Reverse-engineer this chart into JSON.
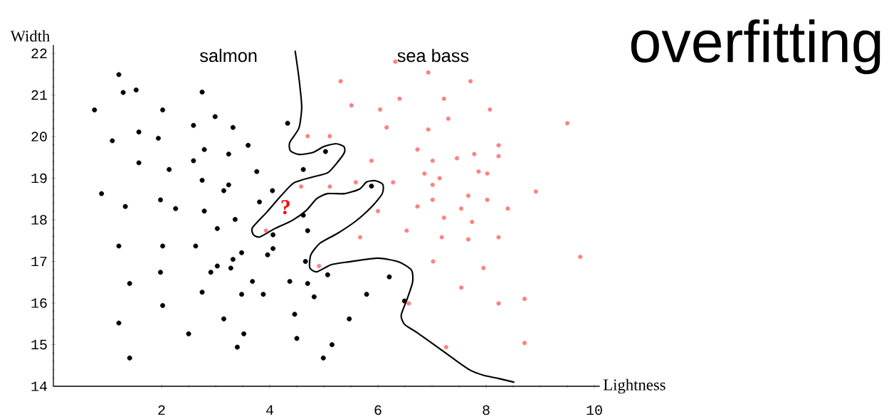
{
  "chart_data": {
    "type": "scatter",
    "title": "overfitting",
    "xlabel": "Lightness",
    "ylabel": "Width",
    "xlim": [
      0,
      10.1
    ],
    "ylim": [
      14,
      22.2
    ],
    "xticks": [
      2,
      4,
      6,
      8,
      10
    ],
    "yticks": [
      14,
      15,
      16,
      17,
      18,
      19,
      20,
      21,
      22
    ],
    "grid": false,
    "legend": false,
    "marker": "circle",
    "annotations": [
      "?"
    ],
    "series": [
      {
        "name": "salmon",
        "color": "#000000",
        "x": [
          1.21,
          1.29,
          1.53,
          2.75,
          0.76,
          2.02,
          2.99,
          2.59,
          3.32,
          4.33,
          1.58,
          1.09,
          1.94,
          2.79,
          3.24,
          3.6,
          2.59,
          1.58,
          2.14,
          3.76,
          2.75,
          3.24,
          3.15,
          4.05,
          0.89,
          1.98,
          3.81,
          1.33,
          2.26,
          2.79,
          3.36,
          3.03,
          4.06,
          1.21,
          2.02,
          2.63,
          4.06,
          3.48,
          3.96,
          3.32,
          3.03,
          3.28,
          2.91,
          1.98,
          1.41,
          3.68,
          4.37,
          2.75,
          3.48,
          3.88,
          2.02,
          3.15,
          4.46,
          1.21,
          2.5,
          3.52,
          4.5,
          3.4,
          1.41,
          5.03,
          4.62,
          5.88,
          4.62,
          4.7,
          4.66,
          5.07,
          4.7,
          6.21,
          4.82,
          5.79,
          6.49,
          5.47,
          5.15,
          4.99
        ],
        "values": [
          21.49,
          21.06,
          21.12,
          21.07,
          20.64,
          20.64,
          20.48,
          20.27,
          20.22,
          20.32,
          20.11,
          19.9,
          19.96,
          19.69,
          19.58,
          19.79,
          19.42,
          19.37,
          19.21,
          19.16,
          18.95,
          18.84,
          18.7,
          18.7,
          18.63,
          18.48,
          18.43,
          18.32,
          18.27,
          18.21,
          18.01,
          17.79,
          17.64,
          17.37,
          17.37,
          17.37,
          17.31,
          17.21,
          17.16,
          17.05,
          16.89,
          16.84,
          16.74,
          16.74,
          16.47,
          16.52,
          16.52,
          16.26,
          16.21,
          16.21,
          15.94,
          15.62,
          15.73,
          15.52,
          15.26,
          15.26,
          15.15,
          14.94,
          14.68,
          19.64,
          19.21,
          18.81,
          18.11,
          17.74,
          17.0,
          16.68,
          16.47,
          16.63,
          16.15,
          16.21,
          16.05,
          15.62,
          15.0,
          14.68
        ]
      },
      {
        "name": "sea bass",
        "color": "#ff8080",
        "x": [
          6.32,
          6.93,
          5.31,
          7.71,
          6.4,
          7.22,
          5.51,
          6.04,
          8.07,
          7.3,
          9.5,
          6.16,
          6.93,
          4.7,
          5.11,
          8.23,
          6.73,
          8.23,
          7.78,
          7.01,
          7.46,
          5.88,
          6.86,
          7.86,
          8.02,
          7.14,
          7.01,
          6.28,
          5.59,
          4.58,
          5.11,
          8.92,
          7.67,
          7.01,
          8.02,
          6.73,
          8.4,
          7.54,
          6.0,
          7.22,
          7.74,
          6.53,
          5.67,
          7.18,
          7.67,
          8.23,
          7.02,
          9.74,
          4.91,
          7.95,
          7.54,
          6.57,
          8.23,
          8.71,
          7.26,
          8.71,
          3.93
        ],
        "values": [
          21.8,
          21.54,
          21.33,
          21.33,
          20.91,
          20.91,
          20.75,
          20.65,
          20.65,
          20.43,
          20.32,
          20.22,
          20.17,
          20.01,
          20.01,
          19.79,
          19.69,
          19.53,
          19.58,
          19.42,
          19.48,
          19.42,
          19.11,
          19.16,
          19.11,
          19.0,
          18.84,
          18.9,
          18.9,
          18.8,
          18.8,
          18.68,
          18.58,
          18.48,
          18.48,
          18.32,
          18.27,
          18.27,
          18.21,
          18.05,
          17.95,
          17.74,
          17.58,
          17.58,
          17.53,
          17.58,
          17.0,
          17.11,
          16.89,
          16.84,
          16.37,
          15.99,
          15.99,
          16.1,
          14.94,
          15.04,
          17.74
        ]
      },
      {
        "type": "line",
        "color": "#000000",
        "marker": "none",
        "line_style": "solid",
        "x": [
          4.47,
          4.54,
          4.59,
          4.54,
          4.37,
          4.38,
          4.54,
          4.8,
          5.0,
          5.22,
          5.37,
          5.38,
          5.25,
          5.07,
          4.8,
          4.45,
          4.21,
          3.95,
          3.68,
          3.7,
          3.82,
          4.08,
          4.41,
          4.67,
          4.87,
          5.07,
          5.39,
          5.66,
          5.79,
          5.95,
          6.09,
          6.08,
          5.89,
          5.59,
          5.26,
          4.93,
          4.76,
          4.74,
          4.87,
          5.13,
          5.46,
          5.99,
          6.38,
          6.62,
          6.64,
          6.54,
          6.43,
          6.49,
          6.71,
          7.08,
          7.43,
          7.7,
          7.96,
          8.22,
          8.51
        ],
        "values": [
          22.05,
          21.4,
          20.72,
          20.21,
          19.86,
          19.66,
          19.57,
          19.62,
          19.76,
          19.83,
          19.76,
          19.62,
          19.38,
          19.13,
          19.03,
          18.89,
          18.58,
          18.19,
          17.81,
          17.64,
          17.59,
          17.78,
          17.98,
          18.22,
          18.51,
          18.63,
          18.63,
          18.74,
          18.91,
          18.94,
          18.85,
          18.63,
          18.32,
          17.97,
          17.68,
          17.44,
          17.16,
          16.85,
          16.75,
          16.92,
          16.99,
          17.08,
          16.99,
          16.79,
          16.5,
          16.1,
          15.71,
          15.49,
          15.3,
          14.96,
          14.63,
          14.39,
          14.26,
          14.19,
          14.1
        ]
      }
    ]
  }
}
